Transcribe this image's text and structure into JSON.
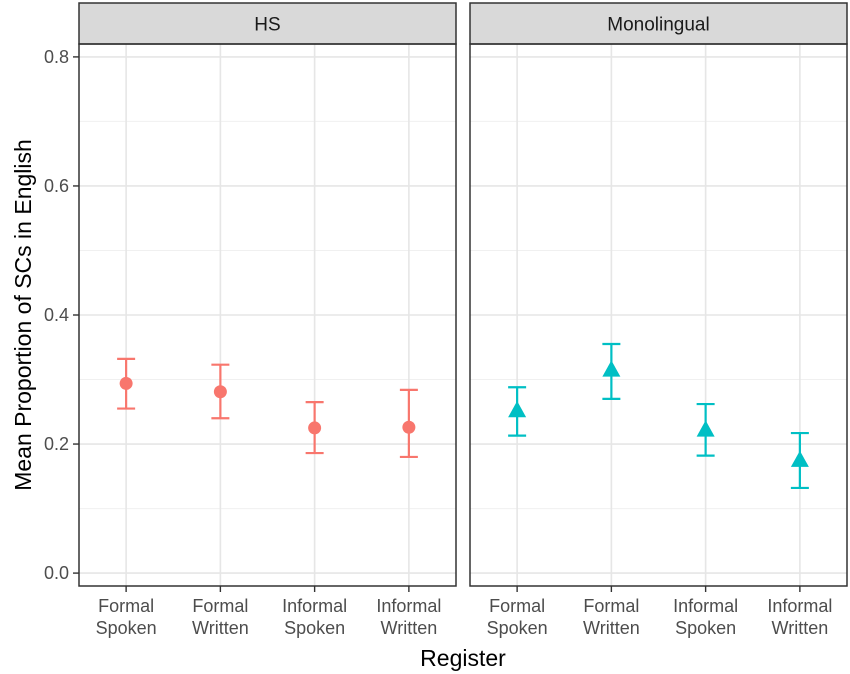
{
  "chart_data": {
    "type": "scatter",
    "subtype": "point-with-errorbars, faceted",
    "xlabel": "Register",
    "ylabel": "Mean Proportion of SCs in English",
    "ylim": [
      -0.02,
      0.82
    ],
    "y_ticks": [
      "0.0",
      "0.2",
      "0.4",
      "0.6",
      "0.8"
    ],
    "y_tick_values": [
      0.0,
      0.2,
      0.4,
      0.6,
      0.8
    ],
    "categories": [
      {
        "line1": "Formal",
        "line2": "Spoken"
      },
      {
        "line1": "Formal",
        "line2": "Written"
      },
      {
        "line1": "Informal",
        "line2": "Spoken"
      },
      {
        "line1": "Informal",
        "line2": "Written"
      }
    ],
    "grid": true,
    "legend": "none",
    "facets": [
      {
        "label": "HS",
        "color": "#F8766D",
        "shape": "circle",
        "means": [
          0.294,
          0.281,
          0.225,
          0.226
        ],
        "lower": [
          0.255,
          0.24,
          0.186,
          0.18
        ],
        "upper": [
          0.332,
          0.323,
          0.265,
          0.284
        ]
      },
      {
        "label": "Monolingual",
        "color": "#00BFC4",
        "shape": "triangle",
        "means": [
          0.252,
          0.315,
          0.222,
          0.175
        ],
        "lower": [
          0.213,
          0.27,
          0.182,
          0.132
        ],
        "upper": [
          0.288,
          0.355,
          0.262,
          0.217
        ]
      }
    ]
  }
}
